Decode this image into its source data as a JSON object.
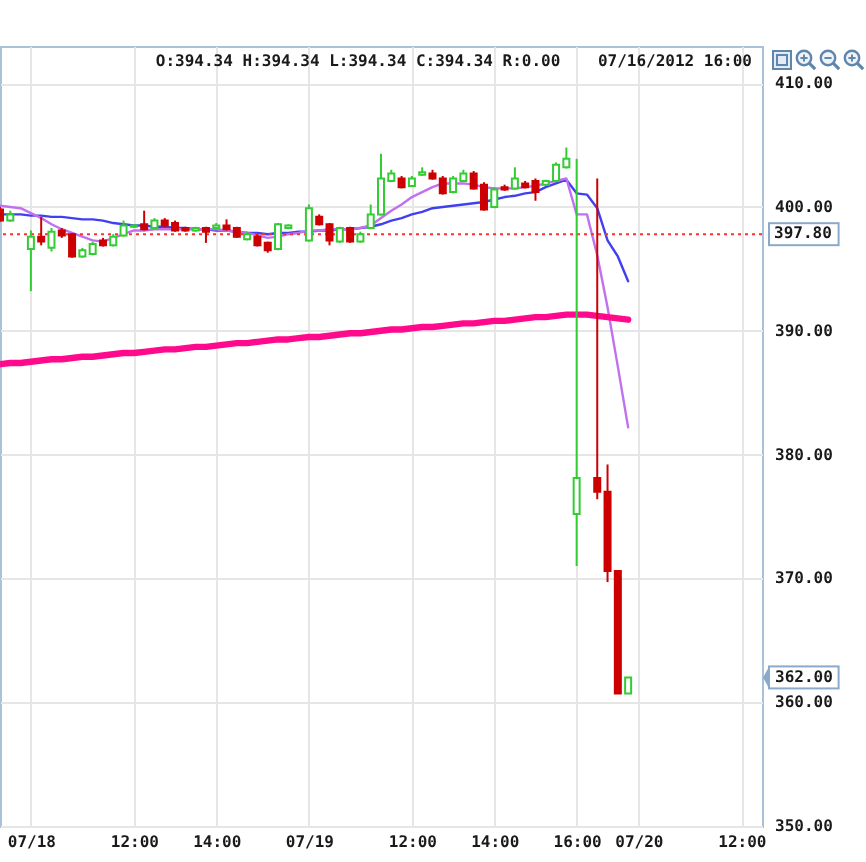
{
  "chart_data": {
    "type": "candlestick",
    "annotations": [
      "O:394.34 H:394.34 L:394.34 C:394.34 R:0.00",
      "07/16/2012 16:00"
    ],
    "categories": [
      null,
      null,
      null,
      "07/18",
      null,
      null,
      null,
      null,
      null,
      null,
      null,
      null,
      null,
      "12:00",
      null,
      null,
      null,
      null,
      null,
      null,
      null,
      "14:00",
      null,
      null,
      null,
      null,
      null,
      null,
      null,
      null,
      "07/19",
      null,
      null,
      null,
      null,
      null,
      null,
      null,
      null,
      null,
      "12:00",
      null,
      null,
      null,
      null,
      null,
      null,
      null,
      "14:00",
      null,
      null,
      null,
      null,
      null,
      null,
      null,
      "16:00",
      null,
      null,
      null,
      null,
      null,
      "07/20",
      null,
      null,
      null,
      null,
      null,
      null,
      null,
      null,
      null,
      "12:00",
      null,
      null
    ],
    "ohlc": [
      [
        399.8,
        400.0,
        398.8,
        398.9
      ],
      [
        398.9,
        399.7,
        398.8,
        399.4
      ],
      null,
      [
        396.6,
        398.1,
        393.2,
        397.6
      ],
      [
        397.6,
        399.2,
        396.9,
        397.2
      ],
      [
        396.7,
        398.3,
        396.4,
        398.0
      ],
      [
        398.1,
        398.3,
        397.5,
        397.7
      ],
      [
        397.8,
        397.9,
        395.9,
        396.0
      ],
      [
        396.0,
        396.7,
        395.9,
        396.5
      ],
      [
        396.2,
        397.2,
        396.1,
        397.0
      ],
      [
        397.3,
        397.5,
        396.8,
        396.9
      ],
      [
        396.9,
        397.8,
        396.8,
        397.6
      ],
      [
        397.7,
        398.9,
        397.6,
        398.5
      ],
      [
        398.4,
        398.6,
        398.3,
        398.5
      ],
      [
        398.6,
        399.7,
        398.1,
        398.2
      ],
      [
        398.3,
        399.1,
        398.2,
        398.9
      ],
      [
        398.9,
        399.1,
        398.4,
        398.5
      ],
      [
        398.7,
        398.9,
        398.0,
        398.1
      ],
      [
        398.3,
        398.4,
        398.0,
        398.1
      ],
      [
        398.1,
        398.4,
        398.0,
        398.3
      ],
      [
        398.3,
        398.4,
        397.1,
        398.0
      ],
      [
        398.3,
        398.7,
        398.2,
        398.5
      ],
      [
        398.5,
        399.0,
        398.1,
        398.2
      ],
      [
        398.3,
        398.4,
        397.5,
        397.6
      ],
      [
        397.4,
        398.0,
        397.3,
        397.8
      ],
      [
        397.6,
        397.8,
        396.8,
        396.9
      ],
      [
        397.1,
        397.2,
        396.3,
        396.5
      ],
      [
        396.6,
        398.7,
        396.5,
        398.6
      ],
      [
        398.3,
        398.6,
        398.2,
        398.5
      ],
      null,
      [
        397.3,
        400.2,
        397.2,
        399.9
      ],
      [
        399.2,
        399.4,
        398.5,
        398.6
      ],
      [
        398.6,
        398.7,
        396.9,
        397.3
      ],
      [
        397.2,
        398.4,
        397.1,
        398.3
      ],
      [
        398.3,
        398.4,
        397.1,
        397.2
      ],
      [
        397.2,
        398.0,
        397.1,
        397.8
      ],
      [
        398.3,
        400.2,
        398.2,
        399.4
      ],
      [
        399.4,
        404.3,
        399.3,
        402.3
      ],
      [
        402.1,
        403.0,
        402.0,
        402.7
      ],
      [
        402.3,
        402.5,
        401.5,
        401.6
      ],
      [
        401.7,
        402.5,
        401.6,
        402.3
      ],
      [
        402.6,
        403.2,
        402.5,
        402.8
      ],
      [
        402.7,
        403.0,
        402.2,
        402.3
      ],
      [
        402.3,
        402.5,
        401.0,
        401.1
      ],
      [
        401.2,
        402.5,
        401.1,
        402.3
      ],
      [
        402.1,
        403.0,
        402.0,
        402.7
      ],
      [
        402.7,
        402.9,
        401.4,
        401.5
      ],
      [
        401.8,
        402.0,
        399.7,
        399.8
      ],
      [
        400.0,
        401.6,
        399.9,
        401.4
      ],
      [
        401.6,
        401.8,
        401.3,
        401.4
      ],
      [
        401.5,
        403.2,
        401.4,
        402.3
      ],
      [
        401.9,
        402.1,
        401.5,
        401.6
      ],
      [
        402.1,
        402.3,
        400.5,
        401.2
      ],
      [
        401.8,
        402.2,
        401.7,
        402.1
      ],
      [
        402.1,
        403.6,
        402.0,
        403.4
      ],
      [
        403.2,
        404.8,
        403.1,
        403.9
      ],
      [
        375.2,
        403.9,
        371.0,
        378.1
      ],
      null,
      [
        378.1,
        402.3,
        376.4,
        377.0
      ],
      [
        377.0,
        379.2,
        369.7,
        370.6
      ],
      [
        370.6,
        370.6,
        360.7,
        360.7
      ],
      [
        360.7,
        362.0,
        360.7,
        362.0
      ],
      null,
      null,
      null,
      null,
      null,
      null,
      null,
      null,
      null,
      null,
      null,
      null,
      null
    ],
    "colors": [
      "#cc0000",
      "#33cc33",
      null,
      "#33cc33",
      "#cc0000",
      "#33cc33",
      "#cc0000",
      "#cc0000",
      "#33cc33",
      "#33cc33",
      "#cc0000",
      "#33cc33",
      "#33cc33",
      "#33cc33",
      "#cc0000",
      "#33cc33",
      "#cc0000",
      "#cc0000",
      "#cc0000",
      "#33cc33",
      "#cc0000",
      "#33cc33",
      "#cc0000",
      "#cc0000",
      "#33cc33",
      "#cc0000",
      "#cc0000",
      "#33cc33",
      "#33cc33",
      null,
      "#33cc33",
      "#cc0000",
      "#cc0000",
      "#33cc33",
      "#cc0000",
      "#33cc33",
      "#33cc33",
      "#33cc33",
      "#33cc33",
      "#cc0000",
      "#33cc33",
      "#33cc33",
      "#cc0000",
      "#cc0000",
      "#33cc33",
      "#33cc33",
      "#cc0000",
      "#cc0000",
      "#33cc33",
      "#cc0000",
      "#33cc33",
      "#cc0000",
      "#cc0000",
      "#33cc33",
      "#33cc33",
      "#33cc33",
      "#33cc33",
      null,
      "#cc0000",
      "#cc0000",
      "#cc0000",
      "#33cc33",
      null,
      null,
      null,
      null,
      null,
      null,
      null,
      null,
      null,
      null,
      null,
      null,
      null
    ],
    "series": [
      {
        "type": "line",
        "color": "#4040f0",
        "values": [
          399.4,
          399.4,
          399.4,
          399.3,
          399.3,
          399.2,
          399.2,
          399.1,
          399.0,
          399.0,
          398.9,
          398.7,
          398.6,
          398.5,
          398.5,
          398.4,
          398.4,
          398.3,
          398.3,
          398.2,
          398.2,
          398.1,
          398.1,
          398.0,
          397.9,
          397.9,
          397.8,
          397.9,
          397.9,
          398.0,
          398.0,
          398.1,
          398.1,
          398.2,
          398.2,
          398.3,
          398.4,
          398.6,
          398.9,
          399.1,
          399.4,
          399.6,
          399.9,
          400.0,
          400.1,
          400.2,
          400.3,
          400.4,
          400.6,
          400.8,
          400.9,
          401.1,
          401.2,
          401.6,
          401.9,
          402.2,
          401.1,
          401.0,
          399.9,
          397.3,
          396.0,
          394.0,
          null,
          null,
          null,
          null,
          null,
          null,
          null,
          null,
          null,
          null,
          null,
          null,
          null
        ]
      },
      {
        "type": "line",
        "color": "#c070f0",
        "values": [
          400.1,
          400.0,
          399.9,
          399.5,
          399.1,
          398.6,
          398.2,
          397.9,
          397.6,
          397.3,
          397.2,
          397.5,
          397.8,
          398.1,
          398.1,
          398.2,
          398.2,
          398.2,
          398.2,
          398.2,
          398.2,
          398.2,
          398.1,
          398.0,
          397.9,
          397.7,
          397.5,
          397.6,
          397.8,
          397.9,
          398.1,
          398.1,
          398.2,
          398.2,
          398.2,
          398.3,
          398.5,
          399.1,
          399.7,
          400.2,
          400.8,
          401.2,
          401.6,
          401.9,
          401.9,
          401.9,
          401.8,
          401.6,
          401.5,
          401.5,
          401.5,
          401.6,
          401.7,
          401.9,
          402.1,
          402.3,
          399.4,
          399.4,
          396.1,
          391.9,
          387.1,
          382.2,
          null,
          null,
          null,
          null,
          null,
          null,
          null,
          null,
          null,
          null,
          null,
          null,
          null
        ]
      },
      {
        "type": "line",
        "color": "#ff0a8c",
        "values": [
          387.3,
          387.4,
          387.4,
          387.5,
          387.6,
          387.7,
          387.7,
          387.8,
          387.9,
          387.9,
          388.0,
          388.1,
          388.2,
          388.2,
          388.3,
          388.4,
          388.5,
          388.5,
          388.6,
          388.7,
          388.7,
          388.8,
          388.9,
          389.0,
          389.0,
          389.1,
          389.2,
          389.3,
          389.3,
          389.4,
          389.5,
          389.5,
          389.6,
          389.7,
          389.8,
          389.8,
          389.9,
          390.0,
          390.1,
          390.1,
          390.2,
          390.3,
          390.3,
          390.4,
          390.5,
          390.6,
          390.6,
          390.7,
          390.8,
          390.8,
          390.9,
          391.0,
          391.1,
          391.1,
          391.2,
          391.3,
          391.3,
          391.3,
          391.2,
          391.1,
          391.0,
          390.9,
          null,
          null,
          null,
          null,
          null,
          null,
          null,
          null,
          null,
          null,
          null,
          null,
          null
        ]
      }
    ],
    "ref_lines": [
      {
        "axis": "y",
        "value": 397.8,
        "label": "397.80",
        "color": "#ff3030",
        "line_style": "dotted"
      }
    ],
    "ylim": [
      350,
      413
    ],
    "yticks": [
      {
        "value": 350,
        "label": "350.00"
      },
      {
        "value": 360,
        "label": "360.00"
      },
      {
        "value": 362,
        "label": "362.00"
      },
      {
        "value": 370,
        "label": "370.00"
      },
      {
        "value": 380,
        "label": "380.00"
      },
      {
        "value": 390,
        "label": "390.00"
      },
      {
        "value": 400,
        "label": "400.00"
      },
      {
        "value": 410,
        "label": "410.00"
      }
    ],
    "grid": true
  }
}
